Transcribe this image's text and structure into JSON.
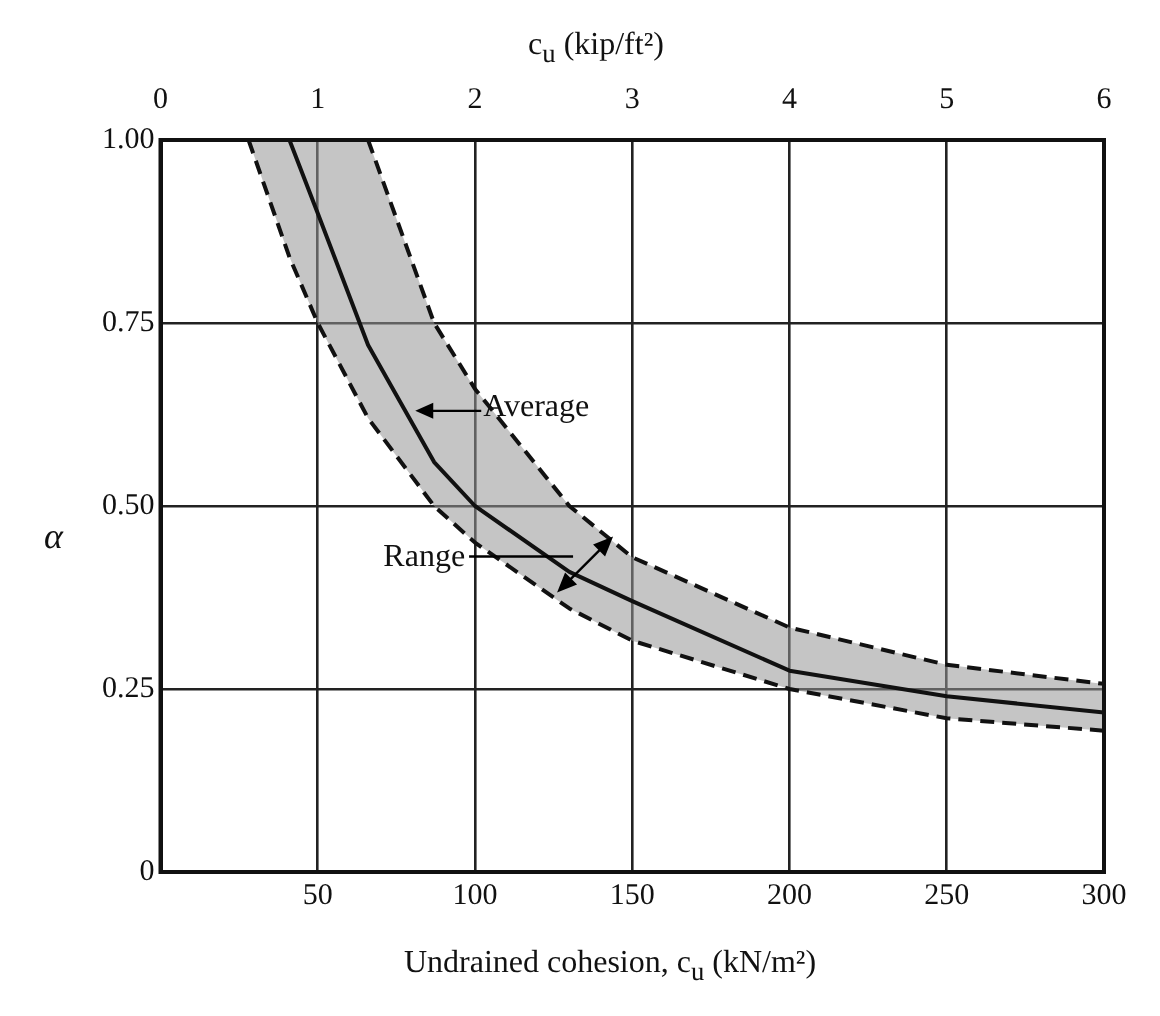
{
  "chart_data": {
    "type": "line",
    "xlabel": "Undrained cohesion, c$_{u}$ (kN/m²)",
    "ylabel": "α",
    "x2label": "c$_{u}$ (kip/ft²)",
    "x": [
      28,
      41,
      50,
      66,
      87,
      100,
      130,
      150,
      200,
      250,
      300
    ],
    "series": [
      {
        "color": "#111111",
        "values": [
          null,
          1,
          0.9,
          0.72,
          0.56,
          0.5,
          0.41,
          0.37,
          0.275,
          0.24,
          0.218
        ],
        "lower": [
          1,
          0.84,
          0.75,
          0.62,
          0.5,
          0.45,
          0.36,
          0.316,
          0.25,
          0.21,
          0.193
        ],
        "upper": [
          1,
          1,
          1,
          1,
          0.75,
          0.66,
          0.5,
          0.43,
          0.334,
          0.283,
          0.257
        ]
      },
      {
        "color": "#111111",
        "line_style": "dashed",
        "values": [
          null,
          null,
          null,
          1,
          0.75,
          0.66,
          0.5,
          0.43,
          0.334,
          0.283,
          0.257
        ]
      },
      {
        "color": "#111111",
        "line_style": "dashed",
        "values": [
          1,
          0.84,
          0.75,
          0.62,
          0.5,
          0.45,
          0.36,
          0.316,
          0.25,
          0.21,
          0.193
        ]
      }
    ],
    "annotations": [
      {
        "text": "Average",
        "x": 81,
        "y": 0.63
      },
      {
        "text": "Range",
        "x": 135,
        "y": 0.42
      }
    ],
    "xlim": [
      0,
      300
    ],
    "xticks": [
      50,
      100,
      150,
      200,
      250,
      300
    ],
    "x2lim": [
      0,
      6
    ],
    "x2ticks": [
      0,
      1,
      2,
      3,
      4,
      5,
      6
    ],
    "ylim": [
      0,
      1
    ],
    "yticks": [
      0,
      0.25,
      {
        "value": 0.5,
        "label": "0.50"
      },
      0.75,
      {
        "value": 1,
        "label": "1.00"
      }
    ],
    "grid": true,
    "legend": false,
    "line_style": "solid"
  }
}
